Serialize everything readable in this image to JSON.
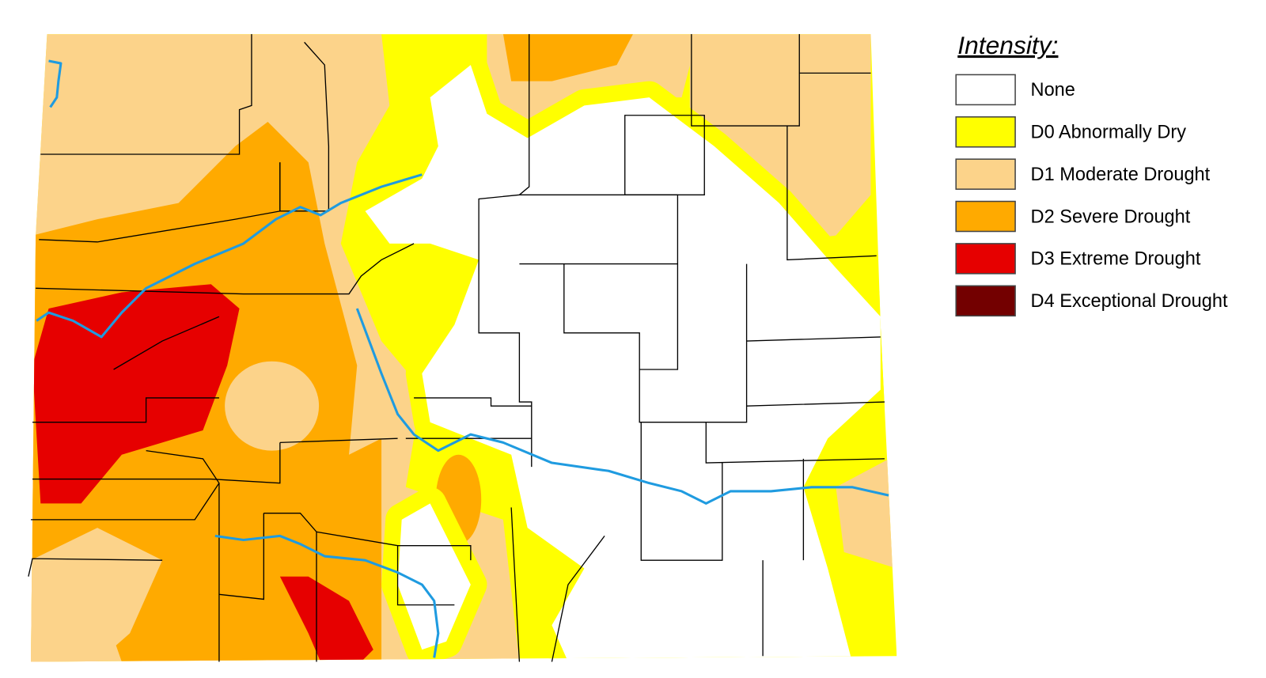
{
  "legend": {
    "title": "Intensity:",
    "items": [
      {
        "label": "None",
        "color": "#ffffff"
      },
      {
        "label": "D0 Abnormally Dry",
        "color": "#ffff00"
      },
      {
        "label": "D1 Moderate Drought",
        "color": "#fcd38a"
      },
      {
        "label": "D2 Severe Drought",
        "color": "#ffaa00"
      },
      {
        "label": "D3 Extreme Drought",
        "color": "#e60000"
      },
      {
        "label": "D4 Exceptional Drought",
        "color": "#730000"
      }
    ]
  }
}
